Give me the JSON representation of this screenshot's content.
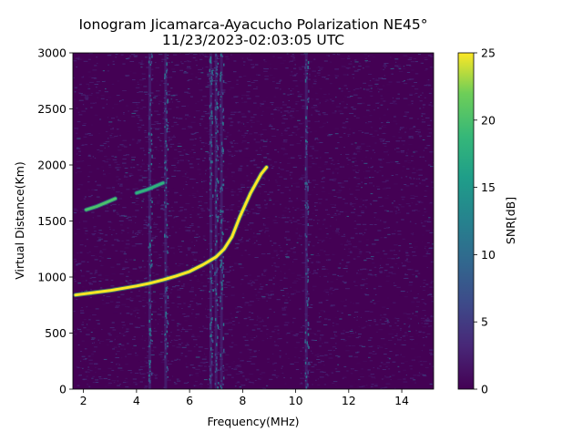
{
  "chart_data": {
    "type": "heatmap",
    "title_line1": "Ionogram Jicamarca-Ayacucho Polarization NE45°",
    "title_line2": "11/23/2023-02:03:05 UTC",
    "xlabel": "Frequency(MHz)",
    "ylabel": "Virtual Distance(Km)",
    "colorbar_label": "SNR[dB]",
    "xlim": [
      1.6,
      15.2
    ],
    "ylim": [
      0,
      3000
    ],
    "clim": [
      0,
      25
    ],
    "colormap": "viridis",
    "xticks": [
      2,
      4,
      6,
      8,
      10,
      12,
      14
    ],
    "xtick_labels": [
      "2",
      "4",
      "6",
      "8",
      "10",
      "12",
      "14"
    ],
    "yticks": [
      0,
      500,
      1000,
      1500,
      2000,
      2500,
      3000
    ],
    "ytick_labels": [
      "0",
      "500",
      "1000",
      "1500",
      "2000",
      "2500",
      "3000"
    ],
    "cticks": [
      0,
      5,
      10,
      15,
      20,
      25
    ],
    "ctick_labels": [
      "0",
      "5",
      "10",
      "15",
      "20",
      "25"
    ],
    "traces": [
      {
        "name": "",
        "snr_db": 25,
        "points": [
          [
            1.7,
            840
          ],
          [
            2.5,
            865
          ],
          [
            3.0,
            880
          ],
          [
            3.5,
            900
          ],
          [
            4.0,
            920
          ],
          [
            4.5,
            945
          ],
          [
            5.0,
            975
          ],
          [
            5.5,
            1010
          ],
          [
            6.0,
            1050
          ],
          [
            6.5,
            1110
          ],
          [
            7.0,
            1180
          ],
          [
            7.3,
            1250
          ],
          [
            7.6,
            1360
          ],
          [
            7.9,
            1540
          ],
          [
            8.3,
            1750
          ],
          [
            8.7,
            1920
          ],
          [
            8.9,
            1980
          ]
        ]
      },
      {
        "name": "",
        "snr_db": 20,
        "points": [
          [
            2.1,
            1600
          ],
          [
            2.5,
            1630
          ],
          [
            2.9,
            1670
          ],
          [
            3.2,
            1700
          ]
        ]
      },
      {
        "name": "",
        "snr_db": 18,
        "points": [
          [
            4.0,
            1750
          ],
          [
            4.4,
            1780
          ],
          [
            4.7,
            1810
          ],
          [
            5.0,
            1840
          ]
        ]
      }
    ],
    "interference_bands_mhz": [
      4.5,
      5.1,
      6.8,
      7.0,
      7.2,
      10.4
    ],
    "noise_floor_db": [
      0,
      5
    ]
  }
}
